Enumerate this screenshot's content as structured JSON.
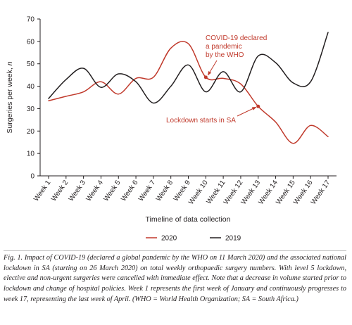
{
  "chart_data": {
    "type": "line",
    "title": "",
    "xlabel": "Timeline of data collection",
    "ylabel": "Surgeries per week, n",
    "ylim": [
      0,
      70
    ],
    "yticks": [
      0,
      10,
      20,
      30,
      40,
      50,
      60,
      70
    ],
    "categories": [
      "Week 1",
      "Week 2",
      "Week 3",
      "Week 4",
      "Week 5",
      "Week 6",
      "Week 7",
      "Week 8",
      "Week 9",
      "Week 10",
      "Week 11",
      "Week 12",
      "Week 13",
      "Week 14",
      "Week 15",
      "Week 16",
      "Week 17"
    ],
    "series": [
      {
        "name": "2020",
        "color": "#c0392b",
        "values": [
          33.5,
          35.5,
          37.5,
          42,
          36.5,
          43.5,
          44,
          57,
          59,
          44,
          43.5,
          41,
          31,
          24,
          14.5,
          22.5,
          17.5
        ]
      },
      {
        "name": "2019",
        "color": "#231f20",
        "values": [
          34.5,
          43,
          48,
          39.5,
          45.5,
          42,
          32.5,
          40,
          49.5,
          37.5,
          46.5,
          37.5,
          53.5,
          50.5,
          41.5,
          42,
          64
        ]
      }
    ],
    "annotations": [
      {
        "label": "COVID-19 declared a pandemic by the WHO",
        "lines": [
          "COVID-19 declared",
          "a pandemic",
          "by the WHO"
        ],
        "target_week": "Week 10",
        "target_value": 44
      },
      {
        "label": "Lockdown starts in SA",
        "lines": [
          "Lockdown starts in SA"
        ],
        "target_week": "Week 13",
        "target_value": 31
      }
    ],
    "legend": "bottom-center",
    "grid": false
  },
  "caption": "Fig. 1. Impact of COVID-19 (declared a global pandemic by the WHO on 11 March 2020) and the associated national lockdown in SA (starting on 26 March 2020) on total weekly orthopaedic surgery numbers. With level 5 lockdown, elective and non-urgent surgeries were cancelled with immediate effect. Note that a decrease in volume started prior to lockdown and change of hospital policies. Week 1 represents the first week of January and continuously progresses to week 17, representing the last week of April. (WHO = World Health Organization; SA = South Africa.)"
}
